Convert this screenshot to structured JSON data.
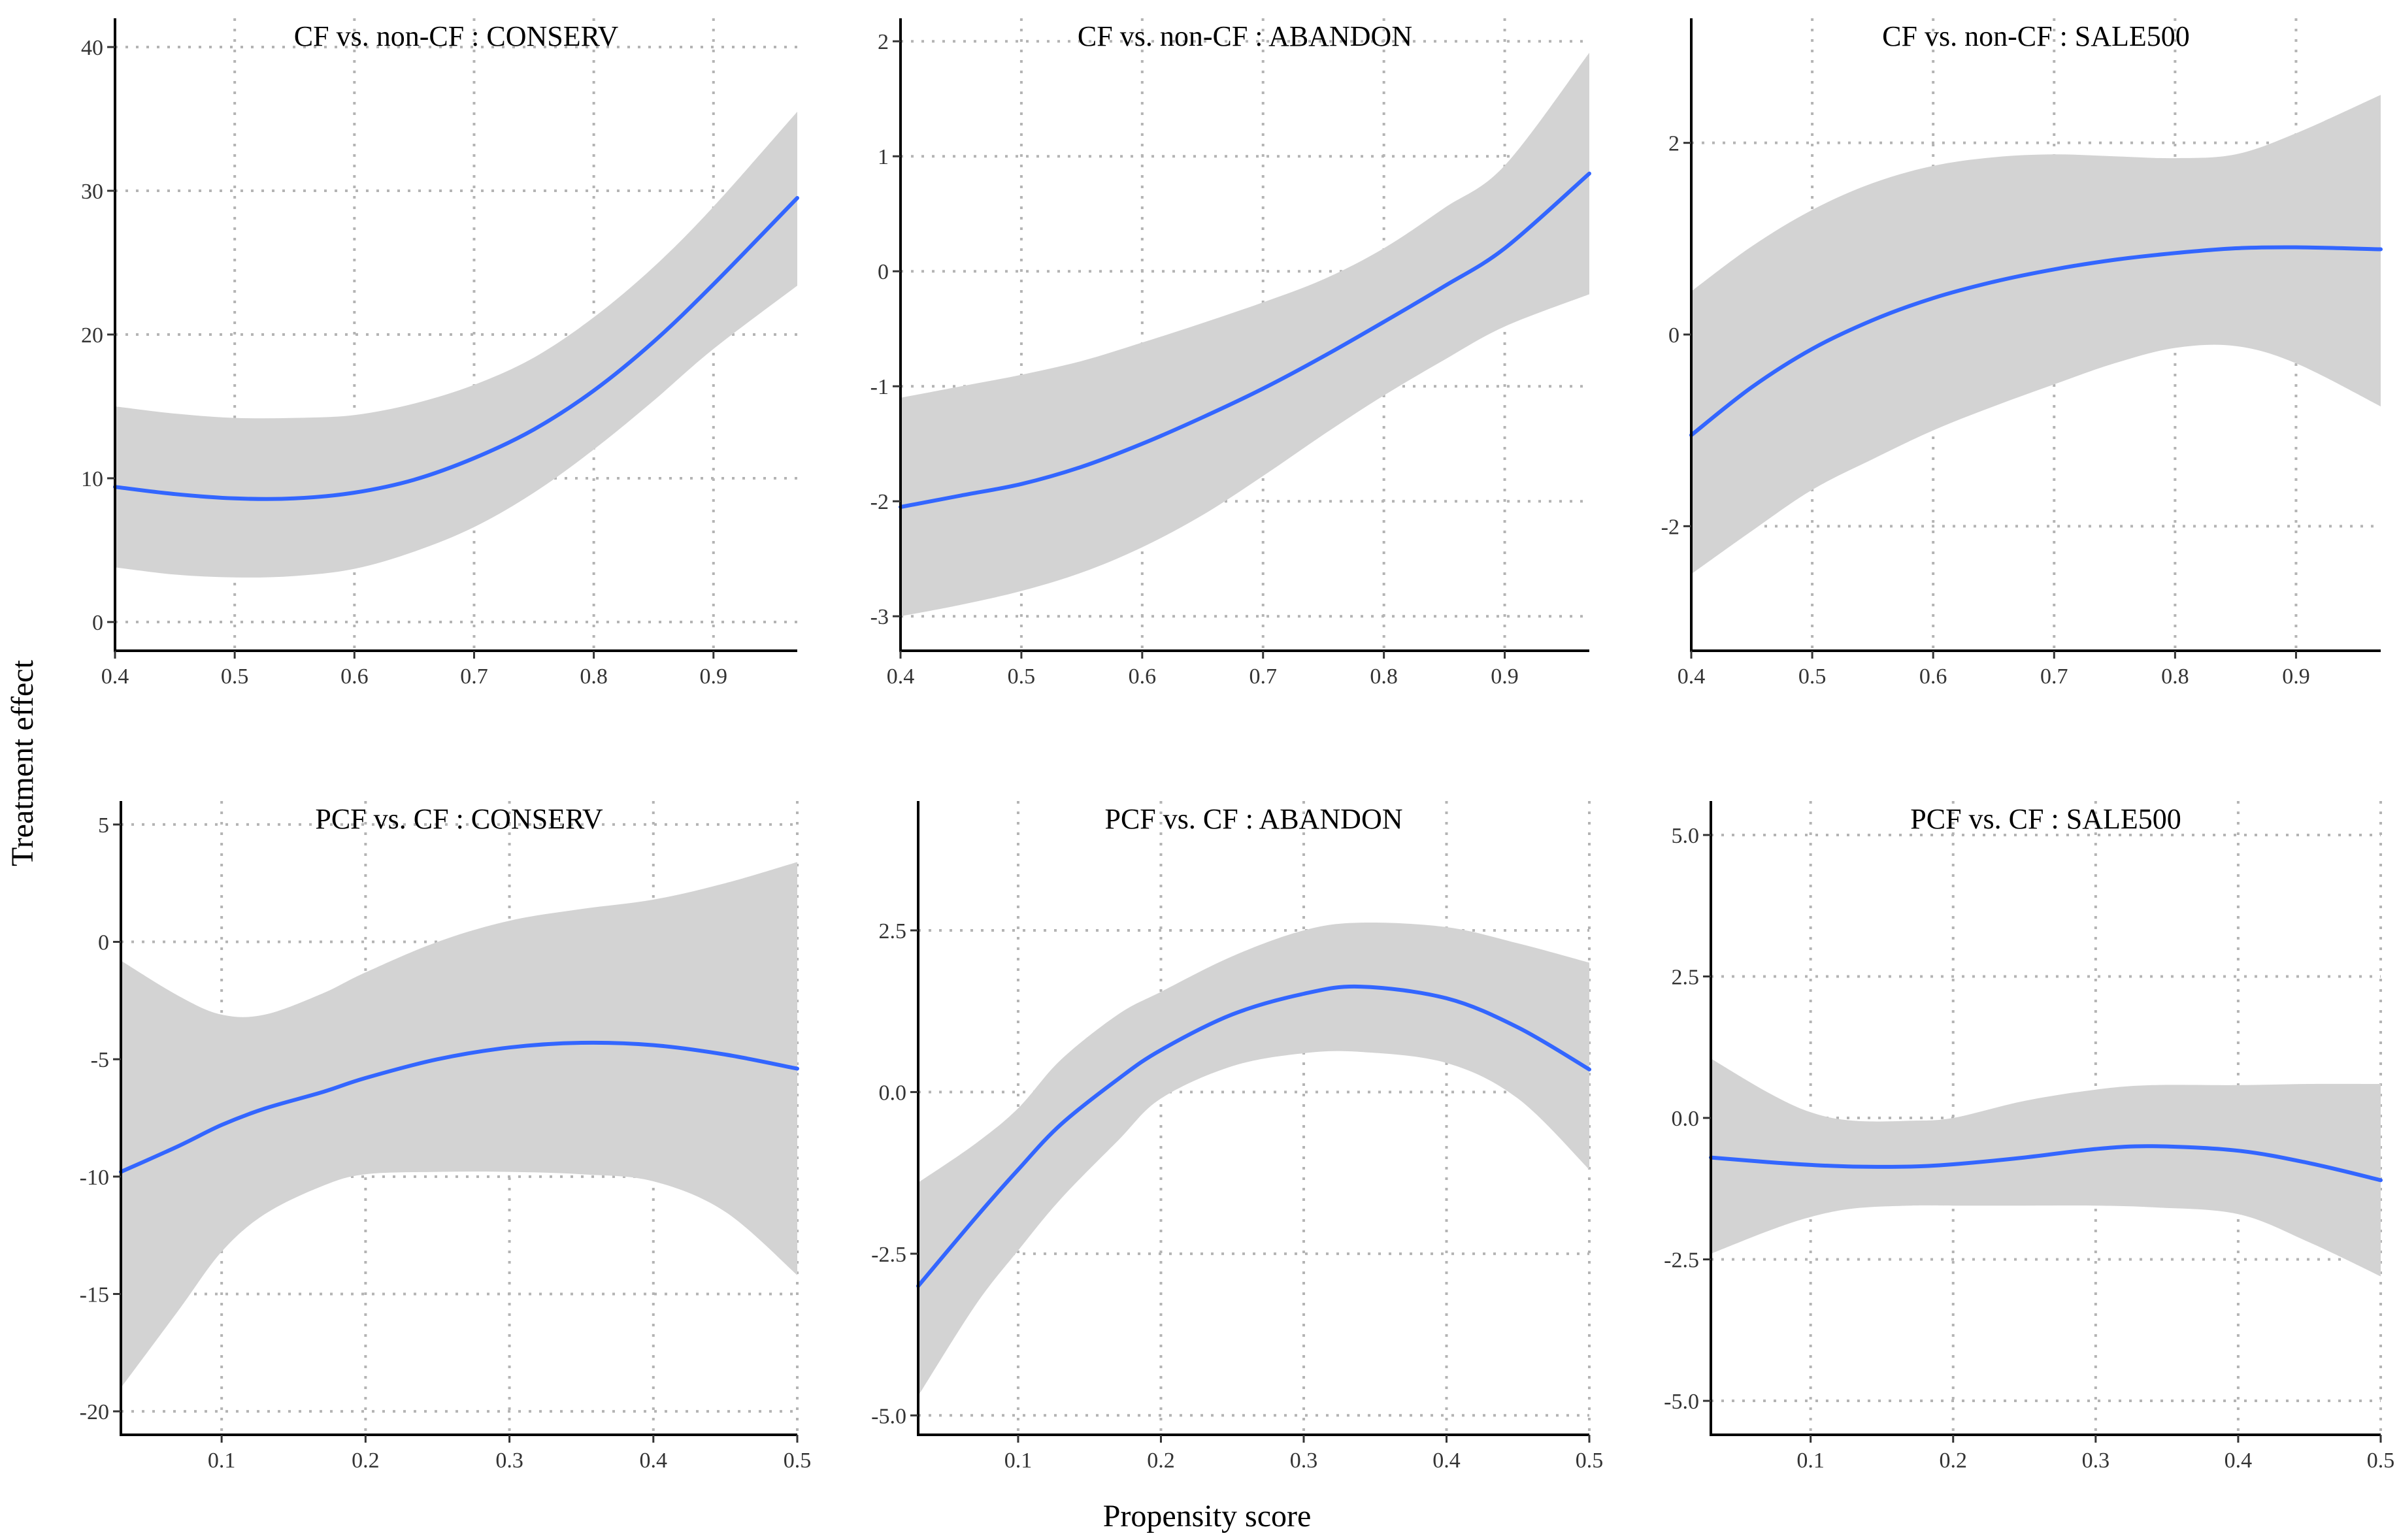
{
  "colors": {
    "line": "#3366ff",
    "band": "#d3d3d3",
    "grid": "#b4b4b4",
    "axis": "#000000"
  },
  "figure": {
    "xlabel": "Propensity score",
    "ylabel": "Treatment effect"
  },
  "chart_data": [
    {
      "type": "line",
      "title": "CF vs. non-CF :  CONSERV",
      "xlim": [
        0.4,
        0.97
      ],
      "ylim": [
        -2,
        42
      ],
      "xticks": [
        0.4,
        0.5,
        0.6,
        0.7,
        0.8,
        0.9
      ],
      "xtick_labels": [
        "0.4",
        "0.5",
        "0.6",
        "0.7",
        "0.8",
        "0.9"
      ],
      "yticks": [
        0,
        10,
        20,
        30,
        40
      ],
      "ytick_labels": [
        "0",
        "10",
        "20",
        "30",
        "40"
      ],
      "x": [
        0.4,
        0.45,
        0.5,
        0.55,
        0.6,
        0.65,
        0.7,
        0.75,
        0.8,
        0.85,
        0.9,
        0.97
      ],
      "fit": [
        9.4,
        8.9,
        8.6,
        8.6,
        9.0,
        9.9,
        11.4,
        13.4,
        16.1,
        19.5,
        23.5,
        29.5
      ],
      "lower": [
        3.8,
        3.3,
        3.1,
        3.2,
        3.7,
        4.9,
        6.6,
        9.0,
        12.0,
        15.4,
        19.0,
        23.4
      ],
      "upper": [
        15.0,
        14.5,
        14.2,
        14.2,
        14.4,
        15.2,
        16.5,
        18.4,
        21.2,
        24.7,
        28.9,
        35.5
      ]
    },
    {
      "type": "line",
      "title": "CF vs. non-CF :  ABANDON",
      "xlim": [
        0.4,
        0.97
      ],
      "ylim": [
        -3.3,
        2.2
      ],
      "xticks": [
        0.4,
        0.5,
        0.6,
        0.7,
        0.8,
        0.9
      ],
      "xtick_labels": [
        "0.4",
        "0.5",
        "0.6",
        "0.7",
        "0.8",
        "0.9"
      ],
      "yticks": [
        -3,
        -2,
        -1,
        0,
        1,
        2
      ],
      "ytick_labels": [
        "-3",
        "-2",
        "-1",
        "0",
        "1",
        "2"
      ],
      "x": [
        0.4,
        0.45,
        0.5,
        0.55,
        0.6,
        0.65,
        0.7,
        0.75,
        0.8,
        0.85,
        0.9,
        0.97
      ],
      "fit": [
        -2.05,
        -1.95,
        -1.85,
        -1.7,
        -1.5,
        -1.27,
        -1.02,
        -0.74,
        -0.44,
        -0.13,
        0.2,
        0.85
      ],
      "lower": [
        -3.0,
        -2.9,
        -2.78,
        -2.62,
        -2.4,
        -2.12,
        -1.78,
        -1.42,
        -1.08,
        -0.77,
        -0.48,
        -0.2
      ],
      "upper": [
        -1.1,
        -1.0,
        -0.9,
        -0.78,
        -0.62,
        -0.45,
        -0.27,
        -0.07,
        0.2,
        0.55,
        0.92,
        1.9
      ]
    },
    {
      "type": "line",
      "title": "CF vs. non-CF :  SALE500",
      "xlim": [
        0.4,
        0.97
      ],
      "ylim": [
        -3.3,
        3.3
      ],
      "xticks": [
        0.4,
        0.5,
        0.6,
        0.7,
        0.8,
        0.9
      ],
      "xtick_labels": [
        "0.4",
        "0.5",
        "0.6",
        "0.7",
        "0.8",
        "0.9"
      ],
      "yticks": [
        -2,
        0,
        2
      ],
      "ytick_labels": [
        "-2",
        "0",
        "2"
      ],
      "x": [
        0.4,
        0.45,
        0.5,
        0.55,
        0.6,
        0.65,
        0.7,
        0.75,
        0.8,
        0.85,
        0.9,
        0.97
      ],
      "fit": [
        -1.05,
        -0.55,
        -0.15,
        0.15,
        0.38,
        0.55,
        0.68,
        0.78,
        0.85,
        0.9,
        0.91,
        0.89
      ],
      "lower": [
        -2.5,
        -2.05,
        -1.62,
        -1.3,
        -1.0,
        -0.75,
        -0.52,
        -0.3,
        -0.14,
        -0.12,
        -0.3,
        -0.75
      ],
      "upper": [
        0.45,
        0.92,
        1.3,
        1.58,
        1.76,
        1.85,
        1.88,
        1.86,
        1.84,
        1.88,
        2.1,
        2.5
      ]
    },
    {
      "type": "line",
      "title": "PCF vs. CF :  CONSERV",
      "xlim": [
        0.03,
        0.5
      ],
      "ylim": [
        -21,
        6
      ],
      "xticks": [
        0.1,
        0.2,
        0.3,
        0.4,
        0.5
      ],
      "xtick_labels": [
        "0.1",
        "0.2",
        "0.3",
        "0.4",
        "0.5"
      ],
      "yticks": [
        -20,
        -15,
        -10,
        -5,
        0,
        5
      ],
      "ytick_labels": [
        "-20",
        "-15",
        "-10",
        "-5",
        "0",
        "5"
      ],
      "x": [
        0.03,
        0.07,
        0.1,
        0.13,
        0.17,
        0.2,
        0.25,
        0.3,
        0.35,
        0.4,
        0.45,
        0.5
      ],
      "fit": [
        -9.8,
        -8.7,
        -7.8,
        -7.1,
        -6.4,
        -5.8,
        -5.0,
        -4.5,
        -4.3,
        -4.4,
        -4.8,
        -5.4
      ],
      "lower": [
        -19.0,
        -15.7,
        -13.2,
        -11.6,
        -10.4,
        -9.9,
        -9.8,
        -9.8,
        -9.9,
        -10.2,
        -11.5,
        -14.2
      ],
      "upper": [
        -0.8,
        -2.3,
        -3.1,
        -3.1,
        -2.2,
        -1.3,
        0.0,
        0.9,
        1.4,
        1.8,
        2.5,
        3.4
      ]
    },
    {
      "type": "line",
      "title": "PCF vs. CF :  ABANDON",
      "xlim": [
        0.03,
        0.5
      ],
      "ylim": [
        -5.3,
        4.5
      ],
      "xticks": [
        0.1,
        0.2,
        0.3,
        0.4,
        0.5
      ],
      "xtick_labels": [
        "0.1",
        "0.2",
        "0.3",
        "0.4",
        "0.5"
      ],
      "yticks": [
        -5.0,
        -2.5,
        0.0,
        2.5
      ],
      "ytick_labels": [
        "-5.0",
        "-2.5",
        "0.0",
        "2.5"
      ],
      "x": [
        0.03,
        0.07,
        0.1,
        0.13,
        0.17,
        0.2,
        0.25,
        0.3,
        0.34,
        0.4,
        0.45,
        0.5
      ],
      "fit": [
        -3.0,
        -1.95,
        -1.2,
        -0.5,
        0.2,
        0.65,
        1.2,
        1.52,
        1.63,
        1.45,
        1.0,
        0.35
      ],
      "lower": [
        -4.7,
        -3.3,
        -2.45,
        -1.65,
        -0.75,
        -0.1,
        0.4,
        0.6,
        0.62,
        0.45,
        -0.1,
        -1.2
      ],
      "upper": [
        -1.4,
        -0.8,
        -0.25,
        0.5,
        1.2,
        1.55,
        2.1,
        2.5,
        2.62,
        2.55,
        2.3,
        2.0
      ]
    },
    {
      "type": "line",
      "title": "PCF vs. CF :  SALE500",
      "xlim": [
        0.03,
        0.5
      ],
      "ylim": [
        -5.6,
        5.6
      ],
      "xticks": [
        0.1,
        0.2,
        0.3,
        0.4,
        0.5
      ],
      "xtick_labels": [
        "0.1",
        "0.2",
        "0.3",
        "0.4",
        "0.5"
      ],
      "yticks": [
        -5.0,
        -2.5,
        0.0,
        2.5,
        5.0
      ],
      "ytick_labels": [
        "-5.0",
        "-2.5",
        "0.0",
        "2.5",
        "5.0"
      ],
      "x": [
        0.03,
        0.07,
        0.1,
        0.13,
        0.17,
        0.2,
        0.25,
        0.3,
        0.34,
        0.4,
        0.45,
        0.5
      ],
      "fit": [
        -0.7,
        -0.78,
        -0.83,
        -0.86,
        -0.86,
        -0.82,
        -0.7,
        -0.55,
        -0.5,
        -0.58,
        -0.8,
        -1.1
      ],
      "lower": [
        -2.4,
        -2.0,
        -1.75,
        -1.6,
        -1.55,
        -1.55,
        -1.55,
        -1.55,
        -1.58,
        -1.7,
        -2.2,
        -2.8
      ],
      "upper": [
        1.05,
        0.45,
        0.1,
        -0.05,
        -0.05,
        0.0,
        0.3,
        0.5,
        0.58,
        0.58,
        0.6,
        0.6
      ]
    }
  ]
}
